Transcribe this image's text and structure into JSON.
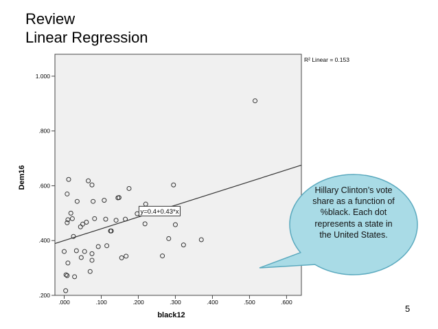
{
  "slide": {
    "title_line1": "Review",
    "title_line2": "Linear Regression",
    "page_number": "5"
  },
  "callout": {
    "text": "Hillary Clinton’s vote share as a function of %black. Each dot represents a state in the United States.",
    "fill": "#a9dbe6",
    "stroke": "#5aa9be"
  },
  "colors": {
    "plot_background": "#f0f0f0",
    "marker_stroke": "#333333",
    "fit_line": "#333333"
  },
  "chart_data": {
    "type": "scatter",
    "xlabel": "black12",
    "ylabel": "Dem16",
    "xlim": [
      -0.025,
      0.64
    ],
    "ylim": [
      0.2,
      1.08
    ],
    "xticks": [
      0.0,
      0.1,
      0.2,
      0.3,
      0.4,
      0.5,
      0.6
    ],
    "xtick_labels": [
      ".000",
      ".100",
      ".200",
      ".300",
      ".400",
      ".500",
      ".600"
    ],
    "yticks": [
      0.2,
      0.4,
      0.6,
      0.8,
      1.0
    ],
    "ytick_labels": [
      ".200",
      ".400",
      ".600",
      ".800",
      "1.000"
    ],
    "grid": false,
    "r2_label": "R² Linear = 0.153",
    "fit": {
      "intercept": 0.4,
      "slope": 0.43,
      "equation_label": "y=0.4+0.43*x"
    },
    "points": [
      [
        0.515,
        0.91
      ],
      [
        0.012,
        0.623
      ],
      [
        0.065,
        0.618
      ],
      [
        0.075,
        0.603
      ],
      [
        0.008,
        0.57
      ],
      [
        0.175,
        0.59
      ],
      [
        0.295,
        0.603
      ],
      [
        0.018,
        0.5
      ],
      [
        0.035,
        0.543
      ],
      [
        0.078,
        0.543
      ],
      [
        0.108,
        0.547
      ],
      [
        0.145,
        0.556
      ],
      [
        0.148,
        0.557
      ],
      [
        0.22,
        0.533
      ],
      [
        0.01,
        0.476
      ],
      [
        0.022,
        0.48
      ],
      [
        0.05,
        0.46
      ],
      [
        0.06,
        0.467
      ],
      [
        0.082,
        0.48
      ],
      [
        0.112,
        0.478
      ],
      [
        0.14,
        0.474
      ],
      [
        0.165,
        0.478
      ],
      [
        0.197,
        0.498
      ],
      [
        0.008,
        0.465
      ],
      [
        0.044,
        0.45
      ],
      [
        0.125,
        0.435
      ],
      [
        0.127,
        0.435
      ],
      [
        0.218,
        0.461
      ],
      [
        0.3,
        0.458
      ],
      [
        0.025,
        0.415
      ],
      [
        0.282,
        0.407
      ],
      [
        0.37,
        0.403
      ],
      [
        0.322,
        0.384
      ],
      [
        0.0,
        0.36
      ],
      [
        0.033,
        0.363
      ],
      [
        0.055,
        0.36
      ],
      [
        0.092,
        0.378
      ],
      [
        0.115,
        0.381
      ],
      [
        0.075,
        0.352
      ],
      [
        0.046,
        0.338
      ],
      [
        0.155,
        0.337
      ],
      [
        0.167,
        0.343
      ],
      [
        0.265,
        0.344
      ],
      [
        0.01,
        0.318
      ],
      [
        0.075,
        0.328
      ],
      [
        0.005,
        0.275
      ],
      [
        0.008,
        0.272
      ],
      [
        0.028,
        0.268
      ],
      [
        0.07,
        0.287
      ],
      [
        0.004,
        0.217
      ]
    ]
  }
}
